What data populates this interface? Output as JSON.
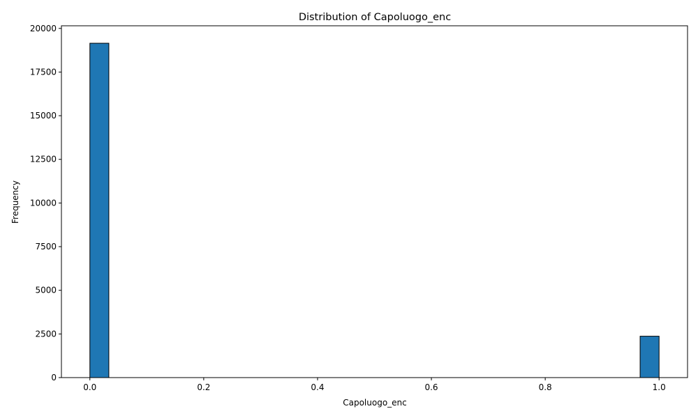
{
  "chart_data": {
    "type": "bar",
    "subtype": "histogram",
    "title": "Distribution of Capoluogo_enc",
    "xlabel": "Capoluogo_enc",
    "ylabel": "Frequency",
    "bins": 30,
    "xlim": [
      -0.05,
      1.05
    ],
    "ylim": [
      0,
      20150
    ],
    "bars": [
      {
        "x0": 0.0,
        "x1": 0.0333,
        "value": 19150
      },
      {
        "x0": 0.9667,
        "x1": 1.0,
        "value": 2370
      }
    ],
    "x_ticks": [
      0.0,
      0.2,
      0.4,
      0.6,
      0.8,
      1.0
    ],
    "x_tick_labels": [
      "0.0",
      "0.2",
      "0.4",
      "0.6",
      "0.8",
      "1.0"
    ],
    "y_ticks": [
      0,
      2500,
      5000,
      7500,
      10000,
      12500,
      15000,
      17500,
      20000
    ],
    "y_tick_labels": [
      "0",
      "2500",
      "5000",
      "7500",
      "10000",
      "12500",
      "15000",
      "17500",
      "20000"
    ],
    "grid": false,
    "legend": "none",
    "colors": {
      "bar_fill": "#1f77b4",
      "bar_edge": "#000000",
      "axes": "#000000"
    }
  }
}
